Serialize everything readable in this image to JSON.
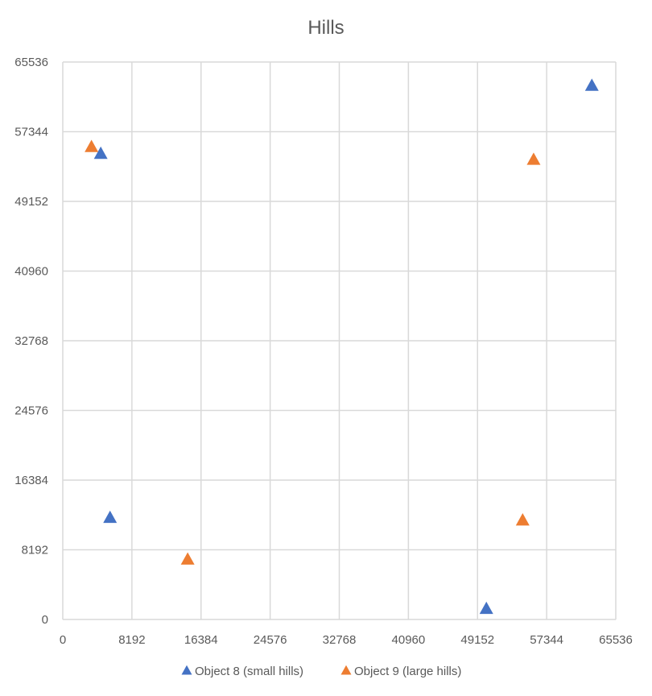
{
  "chart_data": {
    "type": "scatter",
    "title": "Hills",
    "xlabel": "",
    "ylabel": "",
    "xlim": [
      0,
      65536
    ],
    "ylim": [
      0,
      65536
    ],
    "x_ticks": [
      0,
      8192,
      16384,
      24576,
      32768,
      40960,
      49152,
      57344,
      65536
    ],
    "y_ticks": [
      0,
      8192,
      16384,
      24576,
      32768,
      40960,
      49152,
      57344,
      65536
    ],
    "grid": true,
    "legend_position": "bottom",
    "marker": "triangle",
    "series": [
      {
        "name": "Object 8 (small hills)",
        "color": "#4472c4",
        "points": [
          {
            "x": 4500,
            "y": 54700
          },
          {
            "x": 62700,
            "y": 62700
          },
          {
            "x": 5600,
            "y": 11900
          },
          {
            "x": 50200,
            "y": 1200
          }
        ]
      },
      {
        "name": "Object 9 (large hills)",
        "color": "#ed7d31",
        "points": [
          {
            "x": 3400,
            "y": 55500
          },
          {
            "x": 55800,
            "y": 54000
          },
          {
            "x": 14800,
            "y": 7000
          },
          {
            "x": 54500,
            "y": 11600
          }
        ]
      }
    ]
  }
}
